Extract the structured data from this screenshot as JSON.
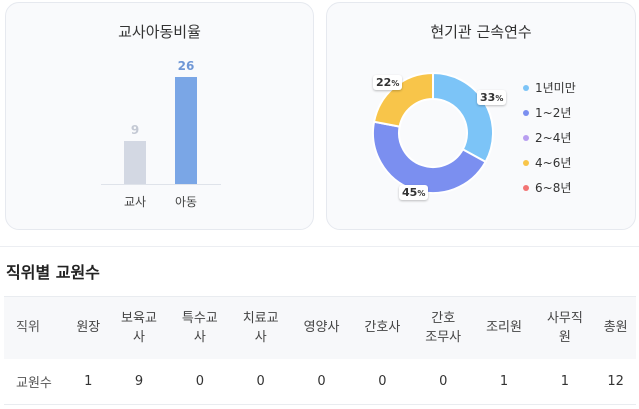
{
  "ratio_card": {
    "title": "교사아동비율",
    "bars": [
      {
        "label": "교사",
        "value": "9",
        "color": "#d3d8e3",
        "value_color": "#c4c9d4"
      },
      {
        "label": "아동",
        "value": "26",
        "color": "#7aa6e6",
        "value_color": "#6f97d6"
      }
    ]
  },
  "tenure_card": {
    "title": "현기관 근속연수",
    "segments": [
      {
        "label": "1년미만",
        "percent": 33,
        "percent_text": "33",
        "color": "#7cc4f7"
      },
      {
        "label": "1~2년",
        "percent": 45,
        "percent_text": "45",
        "color": "#7b8ff0"
      },
      {
        "label": "2~4년",
        "percent": 0,
        "percent_text": "",
        "color": "#b89ef0"
      },
      {
        "label": "4~6년",
        "percent": 22,
        "percent_text": "22",
        "color": "#f8c54a"
      },
      {
        "label": "6~8년",
        "percent": 0,
        "percent_text": "",
        "color": "#f27474"
      }
    ],
    "percent_unit": "%"
  },
  "staff_section": {
    "title": "직위별 교원수",
    "headers": [
      [
        "직위"
      ],
      [
        "원장"
      ],
      [
        "보육교",
        "사"
      ],
      [
        "특수교",
        "사"
      ],
      [
        "치료교",
        "사"
      ],
      [
        "영양사"
      ],
      [
        "간호사"
      ],
      [
        "간호",
        "조무사"
      ],
      [
        "조리원"
      ],
      [
        "사무직",
        "원"
      ],
      [
        "총원"
      ]
    ],
    "row": [
      "교원수",
      "1",
      "9",
      "0",
      "0",
      "0",
      "0",
      "0",
      "1",
      "1",
      "12"
    ]
  }
}
